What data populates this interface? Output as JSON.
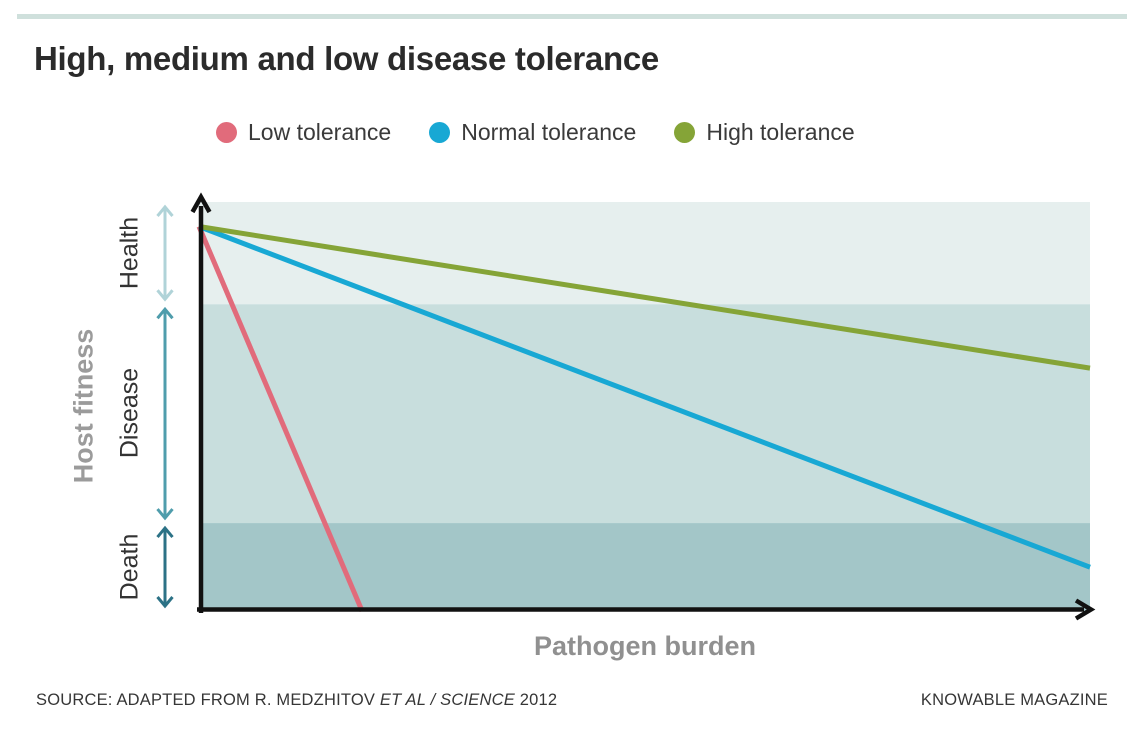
{
  "page": {
    "title": "High, medium and low disease tolerance",
    "source_prefix": "SOURCE: ADAPTED FROM R. MEDZHITOV ",
    "source_italic": "ET AL / SCIENCE",
    "source_suffix": " 2012",
    "credit": "KNOWABLE MAGAZINE"
  },
  "chart_data": {
    "type": "line",
    "title": "High, medium and low disease tolerance",
    "xlabel": "Pathogen burden",
    "ylabel": "Host fitness",
    "xlim": [
      0,
      1
    ],
    "ylim": [
      0,
      1
    ],
    "grid": false,
    "axes_style": "black arrows, no tick labels",
    "legend_position": "top",
    "bands": [
      {
        "label": "Health",
        "y_from": 0.75,
        "y_to": 1.0,
        "fill": "#e6efee",
        "arrow_color": "#b0d3d8"
      },
      {
        "label": "Disease",
        "y_from": 0.215,
        "y_to": 0.75,
        "fill": "#c8dedd",
        "arrow_color": "#4f9dac"
      },
      {
        "label": "Death",
        "y_from": 0.0,
        "y_to": 0.215,
        "fill": "#a3c6c8",
        "arrow_color": "#2c7286"
      }
    ],
    "series": [
      {
        "name": "Low tolerance",
        "color": "#e16b7b",
        "points": [
          [
            0,
            0.94
          ],
          [
            0.183,
            0
          ]
        ]
      },
      {
        "name": "Normal tolerance",
        "color": "#18a8d4",
        "points": [
          [
            0,
            0.94
          ],
          [
            1,
            0.107
          ]
        ]
      },
      {
        "name": "High tolerance",
        "color": "#85a437",
        "points": [
          [
            0,
            0.94
          ],
          [
            1,
            0.594
          ]
        ]
      }
    ],
    "accent_rule_color": "#cfe0dc"
  }
}
